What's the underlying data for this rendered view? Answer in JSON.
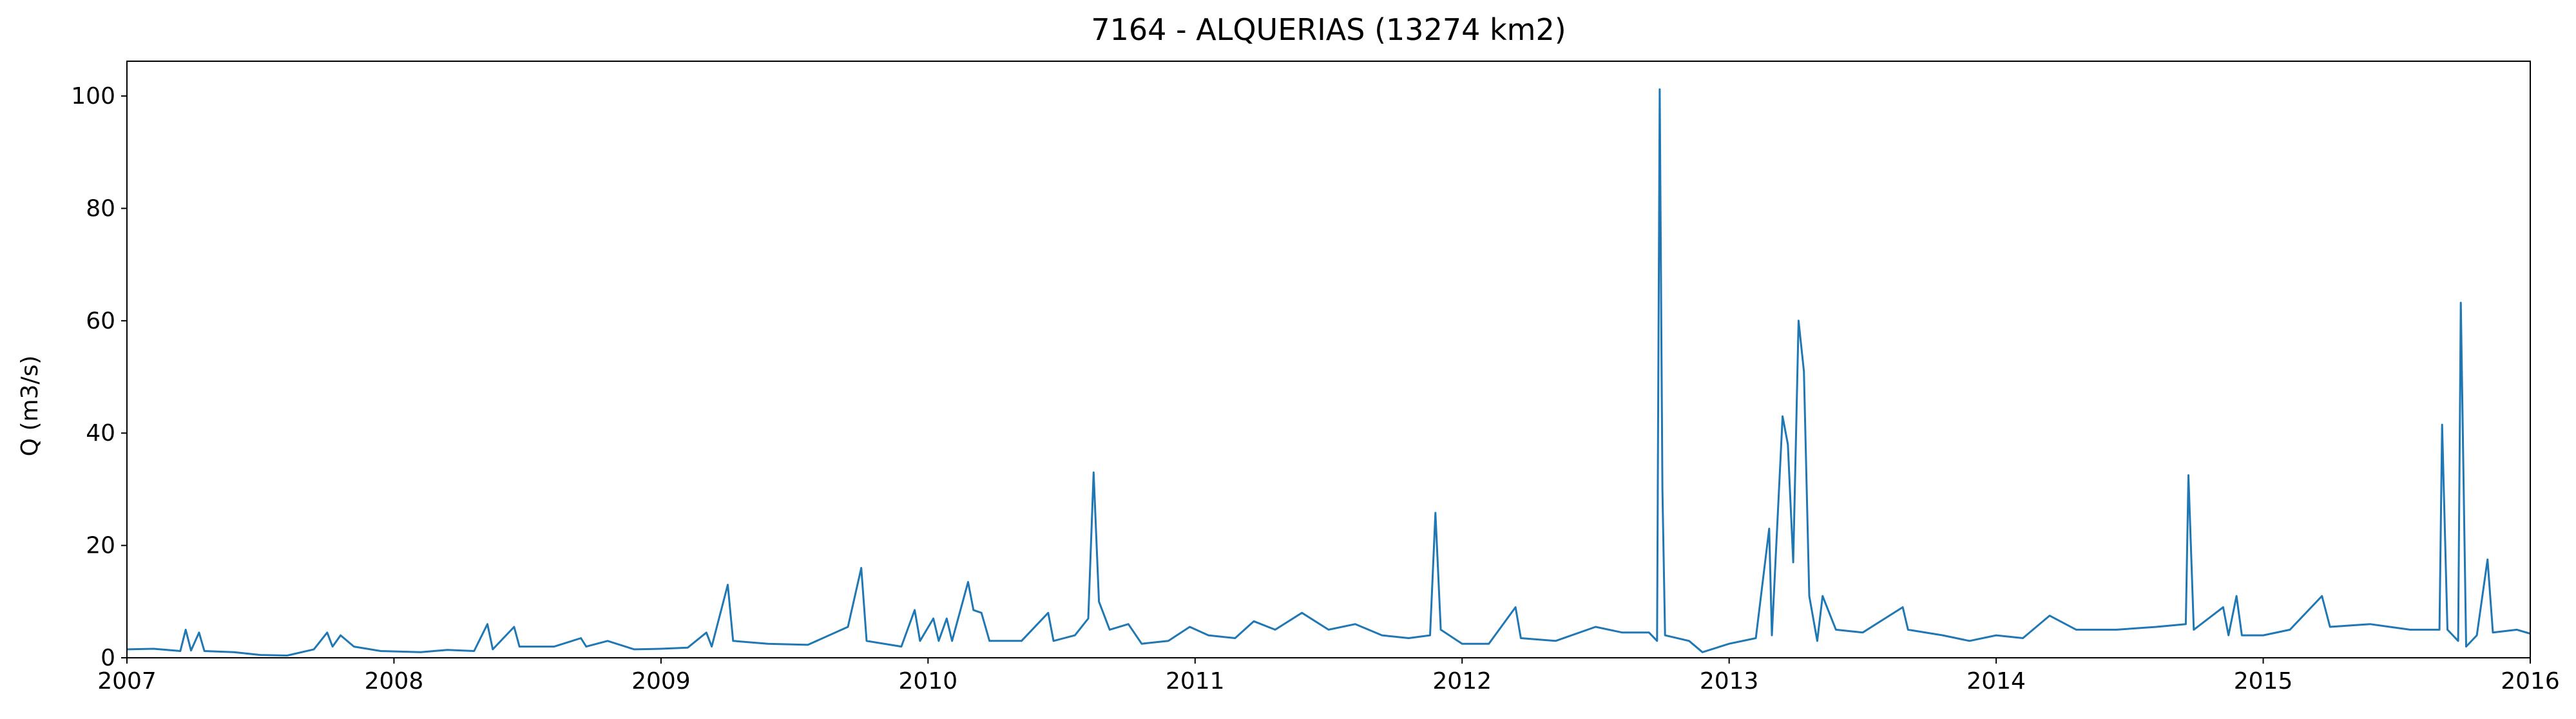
{
  "chart_data": {
    "type": "line",
    "title": "7164 - ALQUERIAS (13274 km2)",
    "y_label": "Q (m3/s)",
    "color": "#1f77b4",
    "x": [
      2007.0,
      2007.1,
      2007.2,
      2007.22,
      2007.24,
      2007.27,
      2007.29,
      2007.4,
      2007.5,
      2007.6,
      2007.7,
      2007.75,
      2007.77,
      2007.8,
      2007.85,
      2007.95,
      2008.1,
      2008.2,
      2008.3,
      2008.35,
      2008.37,
      2008.45,
      2008.47,
      2008.6,
      2008.7,
      2008.72,
      2008.8,
      2008.9,
      2009.0,
      2009.1,
      2009.17,
      2009.19,
      2009.25,
      2009.27,
      2009.4,
      2009.55,
      2009.7,
      2009.75,
      2009.77,
      2009.9,
      2009.95,
      2009.97,
      2010.02,
      2010.04,
      2010.07,
      2010.09,
      2010.15,
      2010.17,
      2010.2,
      2010.23,
      2010.35,
      2010.45,
      2010.47,
      2010.55,
      2010.6,
      2010.62,
      2010.64,
      2010.68,
      2010.75,
      2010.8,
      2010.9,
      2010.98,
      2011.05,
      2011.15,
      2011.22,
      2011.3,
      2011.4,
      2011.5,
      2011.6,
      2011.7,
      2011.8,
      2011.88,
      2011.9,
      2011.92,
      2012.0,
      2012.1,
      2012.2,
      2012.22,
      2012.35,
      2012.5,
      2012.6,
      2012.7,
      2012.73,
      2012.74,
      2012.75,
      2012.76,
      2012.85,
      2012.9,
      2013.0,
      2013.1,
      2013.15,
      2013.16,
      2013.2,
      2013.22,
      2013.24,
      2013.26,
      2013.28,
      2013.3,
      2013.33,
      2013.35,
      2013.4,
      2013.5,
      2013.65,
      2013.67,
      2013.8,
      2013.9,
      2014.0,
      2014.1,
      2014.2,
      2014.3,
      2014.45,
      2014.6,
      2014.71,
      2014.72,
      2014.74,
      2014.85,
      2014.87,
      2014.9,
      2014.92,
      2015.0,
      2015.1,
      2015.22,
      2015.25,
      2015.4,
      2015.55,
      2015.66,
      2015.67,
      2015.69,
      2015.73,
      2015.74,
      2015.76,
      2015.8,
      2015.84,
      2015.86,
      2015.95,
      2016.0
    ],
    "values": [
      1.5,
      1.6,
      1.2,
      5,
      1.3,
      4.5,
      1.2,
      1.0,
      0.5,
      0.4,
      1.5,
      4.5,
      2,
      4,
      2,
      1.2,
      1.0,
      1.4,
      1.2,
      6,
      1.5,
      5.5,
      2,
      2.0,
      3.5,
      2,
      3,
      1.5,
      1.6,
      1.8,
      4.5,
      2,
      13,
      3,
      2.5,
      2.3,
      5.5,
      16,
      3,
      2,
      8.5,
      3,
      7,
      3,
      7,
      3,
      13.5,
      8.5,
      8,
      3,
      3,
      8,
      3,
      4,
      7,
      33,
      10,
      5,
      6,
      2.5,
      3,
      5.5,
      4,
      3.5,
      6.5,
      5,
      8,
      5,
      6,
      4,
      3.5,
      4,
      25.8,
      5,
      2.5,
      2.5,
      9,
      3.5,
      3,
      5.5,
      4.5,
      4.5,
      3,
      101.2,
      30,
      4,
      3,
      1,
      2.5,
      3.5,
      23,
      4,
      43,
      38,
      17,
      60,
      51,
      11,
      3,
      11,
      5,
      4.5,
      9,
      5,
      4,
      3,
      4,
      3.5,
      7.5,
      5,
      5,
      5.5,
      6,
      32.5,
      5,
      9,
      4,
      11,
      4,
      4,
      5,
      11,
      5.5,
      6,
      5,
      5,
      41.5,
      5,
      3,
      63.2,
      2,
      4,
      17.5,
      4.5,
      5,
      4.3
    ],
    "xlim": [
      2007,
      2016
    ],
    "xticks": [
      2007,
      2008,
      2009,
      2010,
      2011,
      2012,
      2013,
      2014,
      2015,
      2016
    ],
    "ylim": [
      0,
      106.2
    ],
    "yticks": [
      0,
      20,
      40,
      60,
      80,
      100
    ]
  }
}
